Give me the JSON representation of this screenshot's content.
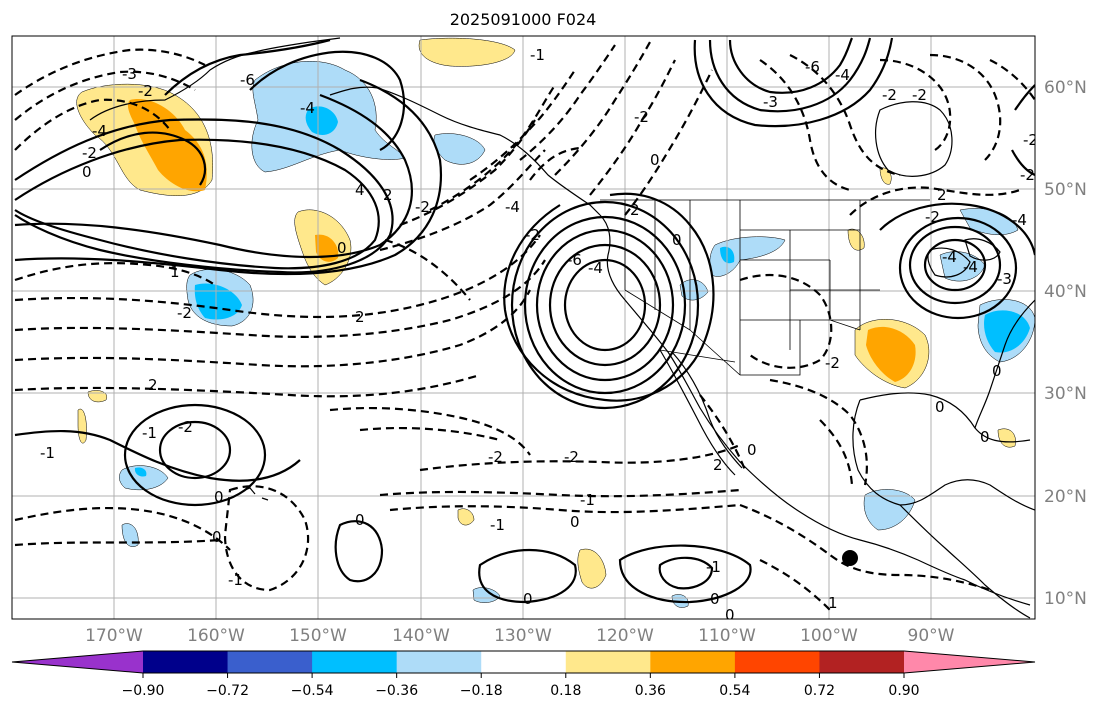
{
  "title": "2025091000 F024",
  "lat_labels": [
    "60°N",
    "50°N",
    "40°N",
    "30°N",
    "20°N",
    "10°N"
  ],
  "lon_labels": [
    "170°W",
    "160°W",
    "150°W",
    "140°W",
    "130°W",
    "120°W",
    "110°W",
    "100°W",
    "90°W"
  ],
  "colorbar": {
    "tick_labels": [
      "−0.90",
      "−0.72",
      "−0.54",
      "−0.36",
      "−0.18",
      "0.18",
      "0.36",
      "0.54",
      "0.72",
      "0.90"
    ],
    "colors": [
      "#9932CC",
      "#00008B",
      "#3A5FCD",
      "#00BFFF",
      "#AEDCF8",
      "#FFFFFF",
      "#FFE88C",
      "#FFA500",
      "#FF4500",
      "#B22222",
      "#FF88AA"
    ]
  },
  "contour_labels": [
    "-3",
    "-2",
    "-4",
    "-2",
    "0",
    "-6",
    "-4",
    "-6",
    "-4",
    "-3",
    "4",
    "2",
    "1",
    "0",
    "-2",
    "2",
    "-2",
    "-4",
    "-2",
    "-2",
    "-6",
    "-4",
    "2",
    "0",
    "-1",
    "-2",
    "-1",
    "0",
    "-1",
    "0",
    "0",
    "0",
    "0",
    "0",
    "-2",
    "-1",
    "-1",
    "-2",
    "2",
    "0",
    "1",
    "0",
    "0",
    "0",
    "-2",
    "0",
    "-1",
    "-2",
    "-2",
    "2",
    "-2",
    "-4",
    "-4",
    "-3",
    "-4",
    "-2",
    "-2",
    "0",
    "-1",
    "2"
  ],
  "point_marker": "storm-center-dot"
}
